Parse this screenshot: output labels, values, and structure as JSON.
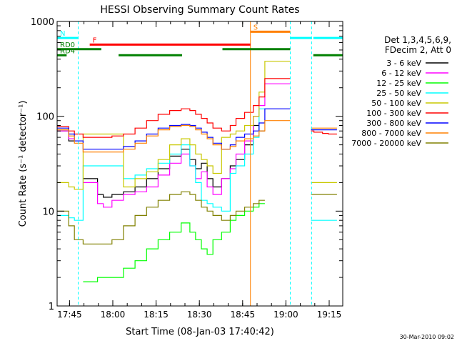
{
  "chart_data": {
    "type": "line",
    "title": "HESSI Observing Summary Count Rates",
    "xlabel": "Start Time (08-Jan-03 17:40:42)",
    "ylabel": "Count Rate (s⁻¹ detector⁻¹)",
    "x_unit": "minutes after 17:40:42",
    "xlim": [
      0,
      99
    ],
    "ylim": [
      1,
      1000
    ],
    "y_scale": "log",
    "x_ticks": [
      {
        "x": 4.3,
        "label": "17:45"
      },
      {
        "x": 19.3,
        "label": "18:00"
      },
      {
        "x": 34.3,
        "label": "18:15"
      },
      {
        "x": 49.3,
        "label": "18:30"
      },
      {
        "x": 64.3,
        "label": "18:45"
      },
      {
        "x": 79.3,
        "label": "19:00"
      },
      {
        "x": 94.3,
        "label": "19:15"
      }
    ],
    "y_ticks": [
      {
        "y": 1,
        "label": "1"
      },
      {
        "y": 10,
        "label": "10"
      },
      {
        "y": 100,
        "label": "100"
      },
      {
        "y": 1000,
        "label": "1000"
      }
    ],
    "legend": {
      "header": [
        "Det 1,3,4,5,6,9,",
        "FDecim 2, Att 0"
      ],
      "position": "right"
    },
    "footer_date": "30-Mar-2010 09:02",
    "series": [
      {
        "name": "3 - 6 keV",
        "color": "#000000",
        "x": [
          0,
          4,
          6,
          9,
          14,
          16,
          19,
          23,
          27,
          31,
          35,
          39,
          43,
          46,
          48,
          50,
          52,
          54,
          57,
          60,
          62,
          65,
          68,
          70,
          72,
          80.8,
          88,
          89,
          92,
          94,
          97
        ],
        "y": [
          70,
          55,
          null,
          22,
          15,
          14,
          15,
          16,
          18,
          22,
          28,
          38,
          45,
          35,
          28,
          32,
          22,
          18,
          22,
          30,
          35,
          50,
          80,
          70,
          null,
          null,
          null,
          null,
          null,
          null,
          null
        ]
      },
      {
        "name": "6 - 12 keV",
        "color": "#ff00ff",
        "x": [
          0,
          4,
          6,
          9,
          14,
          16,
          19,
          23,
          27,
          31,
          35,
          39,
          43,
          46,
          48,
          50,
          52,
          54,
          57,
          60,
          62,
          65,
          68,
          70,
          72,
          80.8,
          88,
          89,
          92,
          94,
          97
        ],
        "y": [
          70,
          58,
          null,
          20,
          12,
          11,
          13,
          15,
          16,
          18,
          24,
          32,
          40,
          30,
          22,
          26,
          18,
          15,
          22,
          28,
          40,
          55,
          100,
          130,
          220,
          null,
          null,
          null,
          null,
          null,
          null
        ]
      },
      {
        "name": "12 - 25 keV",
        "color": "#00ff00",
        "x": [
          0,
          4,
          6,
          9,
          14,
          16,
          19,
          23,
          27,
          31,
          35,
          39,
          43,
          46,
          48,
          50,
          52,
          54,
          57,
          60,
          62,
          65,
          68,
          70,
          72,
          80.8,
          88,
          89,
          92,
          94,
          97
        ],
        "y": [
          null,
          null,
          null,
          1.8,
          2,
          2,
          2,
          2.5,
          3,
          4,
          5,
          6,
          7.5,
          6,
          5,
          4,
          3.5,
          5,
          6,
          8,
          9,
          10,
          11,
          12,
          null,
          null,
          null,
          null,
          null,
          null,
          null
        ]
      },
      {
        "name": "25 - 50 keV",
        "color": "#00ffff",
        "x": [
          0,
          4,
          6,
          9,
          14,
          16,
          19,
          23,
          27,
          31,
          35,
          39,
          43,
          46,
          48,
          50,
          52,
          54,
          57,
          60,
          62,
          65,
          68,
          70,
          72,
          80.8,
          88,
          89,
          92,
          94,
          97
        ],
        "y": [
          9,
          8.5,
          8,
          30,
          30,
          30,
          30,
          22,
          24,
          28,
          32,
          40,
          50,
          30,
          20,
          13,
          12,
          11,
          10,
          25,
          30,
          40,
          60,
          120,
          null,
          null,
          8,
          8,
          8,
          8,
          8
        ]
      },
      {
        "name": "50 - 100 keV",
        "color": "#c8c800",
        "x": [
          0,
          4,
          6,
          9,
          14,
          16,
          19,
          23,
          27,
          31,
          35,
          39,
          43,
          46,
          48,
          50,
          52,
          54,
          57,
          60,
          62,
          65,
          68,
          70,
          72,
          80.8,
          88,
          89,
          92,
          94,
          97
        ],
        "y": [
          20,
          18,
          17,
          65,
          65,
          65,
          65,
          18,
          22,
          26,
          35,
          50,
          58,
          50,
          40,
          35,
          30,
          25,
          60,
          65,
          70,
          80,
          100,
          180,
          380,
          null,
          20,
          20,
          20,
          20,
          20
        ]
      },
      {
        "name": "100 - 300 keV",
        "color": "#ff0000",
        "x": [
          0,
          4,
          6,
          9,
          14,
          16,
          19,
          23,
          27,
          31,
          35,
          39,
          43,
          46,
          48,
          50,
          52,
          54,
          57,
          60,
          62,
          65,
          68,
          70,
          72,
          80.8,
          88,
          89,
          92,
          94,
          97
        ],
        "y": [
          78,
          70,
          65,
          60,
          60,
          60,
          62,
          65,
          75,
          90,
          105,
          115,
          120,
          115,
          105,
          95,
          85,
          75,
          70,
          80,
          95,
          110,
          130,
          160,
          250,
          null,
          70,
          68,
          66,
          65,
          65
        ]
      },
      {
        "name": "300 - 800 keV",
        "color": "#0000ff",
        "x": [
          0,
          4,
          6,
          9,
          14,
          16,
          19,
          23,
          27,
          31,
          35,
          39,
          43,
          46,
          48,
          50,
          52,
          54,
          57,
          60,
          62,
          65,
          68,
          70,
          72,
          80.8,
          88,
          89,
          92,
          94,
          97
        ],
        "y": [
          75,
          65,
          55,
          45,
          45,
          45,
          45,
          48,
          55,
          65,
          75,
          80,
          82,
          80,
          75,
          68,
          60,
          52,
          45,
          50,
          60,
          65,
          70,
          85,
          120,
          null,
          72,
          72,
          72,
          72,
          72
        ]
      },
      {
        "name": "800 - 7000 keV",
        "color": "#ff8000",
        "x": [
          0,
          4,
          6,
          9,
          14,
          16,
          19,
          23,
          27,
          31,
          35,
          39,
          43,
          46,
          48,
          50,
          52,
          54,
          57,
          60,
          62,
          65,
          68,
          70,
          72,
          80.8,
          88,
          89,
          92,
          94,
          97
        ],
        "y": [
          72,
          62,
          52,
          42,
          42,
          42,
          42,
          45,
          52,
          62,
          72,
          78,
          80,
          78,
          72,
          65,
          58,
          50,
          45,
          48,
          55,
          58,
          62,
          70,
          90,
          null,
          75,
          75,
          75,
          75,
          75
        ]
      },
      {
        "name": "7000 - 20000 keV",
        "color": "#808000",
        "x": [
          0,
          4,
          6,
          9,
          14,
          16,
          19,
          23,
          27,
          31,
          35,
          39,
          43,
          46,
          48,
          50,
          52,
          54,
          57,
          60,
          62,
          65,
          68,
          70,
          72,
          80.8,
          88,
          89,
          92,
          94,
          97
        ],
        "y": [
          10,
          7,
          5,
          4.5,
          4.5,
          4.5,
          5,
          7,
          9,
          11,
          13,
          15,
          16,
          15,
          13,
          11,
          10,
          9,
          8,
          9,
          10,
          11,
          12,
          13,
          null,
          null,
          15,
          15,
          15,
          15,
          15
        ]
      }
    ],
    "vertical_markers": [
      {
        "x": 7.3,
        "color": "#00ffff",
        "style": "dashed"
      },
      {
        "x": 67.0,
        "color": "#ff8000",
        "style": "solid"
      },
      {
        "x": 80.8,
        "color": "#00ffff",
        "style": "dashed"
      },
      {
        "x": 88.2,
        "color": "#00ffff",
        "style": "dashed"
      }
    ],
    "flag_bars": [
      {
        "label": "N",
        "color": "#00ffff",
        "y_level": 670,
        "intervals": [
          [
            0,
            7.3
          ],
          [
            80.8,
            88.2
          ],
          [
            88.8,
            99
          ]
        ]
      },
      {
        "label": "F",
        "color": "#ff0000",
        "y_level": 570,
        "intervals": [
          [
            11.3,
            67.0
          ]
        ]
      },
      {
        "label": "S",
        "color": "#ff8000",
        "y_level": 780,
        "intervals": [
          [
            67.0,
            80.8
          ]
        ]
      },
      {
        "label": "RD0",
        "color": "#008000",
        "y_level": 510,
        "intervals": [
          [
            0,
            15.3
          ],
          [
            57.3,
            80.8
          ]
        ]
      },
      {
        "label": "RD4",
        "color": "#008000",
        "y_level": 440,
        "intervals": [
          [
            0,
            3.3
          ],
          [
            21.3,
            43.3
          ],
          [
            88.8,
            99
          ]
        ]
      }
    ]
  }
}
